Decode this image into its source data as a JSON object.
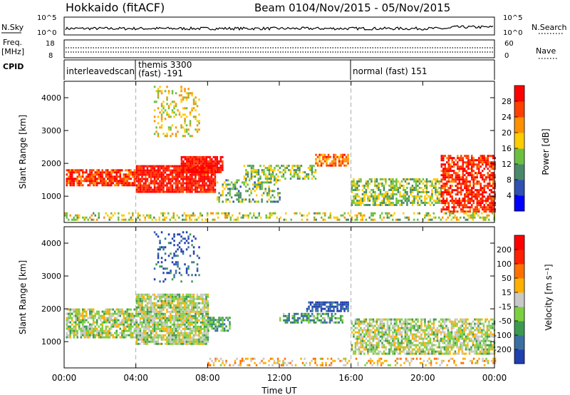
{
  "header": {
    "station": "Hokkaido (fitACF)",
    "beam": "Beam 01",
    "date_range": "04/Nov/2015 - 05/Nov/2015"
  },
  "side_labels": {
    "nsky": "N.Sky",
    "freq_line1": "Freq.",
    "freq_line2": "[MHz]",
    "cpid": "CPID",
    "nsearch": "N.Search",
    "nave": "Nave"
  },
  "strips": {
    "noise_ticks_left": [
      "10^5",
      "10^0"
    ],
    "noise_ticks_right": [
      "10^5",
      "10^0"
    ],
    "freq_ticks_left": [
      "18",
      "8"
    ],
    "freq_ticks_right": [
      "60",
      "0"
    ]
  },
  "cpid_segments": [
    {
      "start_hour": 0,
      "label_line1": "interleavedscan",
      "label_line2": ""
    },
    {
      "start_hour": 4,
      "label_line1": "themis 3300",
      "label_line2": "(fast) -191"
    },
    {
      "start_hour": 16,
      "label_line1": "normal (fast) 151",
      "label_line2": ""
    }
  ],
  "chart_data": [
    {
      "type": "heatmap",
      "panel": "power",
      "ylabel": "Slant Range [km]",
      "ylim": [
        200,
        4500
      ],
      "yticks": [
        1000,
        2000,
        3000,
        4000
      ],
      "xlim_hours": [
        0,
        24
      ],
      "colorbar_label": "Power [dB]",
      "colorbar_ticks": [
        "4",
        "8",
        "12",
        "16",
        "20",
        "24",
        "28"
      ],
      "colorbar_colors": [
        "#0000ff",
        "#3050b4",
        "#4a8a6a",
        "#6cc040",
        "#ffcc00",
        "#ff9000",
        "#ff4000",
        "#ff0000"
      ],
      "bands": [
        {
          "t0": 0.1,
          "t1": 4.0,
          "r0": 1300,
          "r1": 1800,
          "level": 0.85,
          "density": 0.8
        },
        {
          "t0": 4.0,
          "t1": 8.4,
          "r0": 1100,
          "r1": 1900,
          "level": 0.92,
          "density": 0.9
        },
        {
          "t0": 6.5,
          "t1": 8.8,
          "r0": 1700,
          "r1": 2200,
          "level": 0.95,
          "density": 0.9
        },
        {
          "t0": 8.5,
          "t1": 12.0,
          "r0": 800,
          "r1": 1500,
          "level": 0.4,
          "density": 0.4
        },
        {
          "t0": 10.0,
          "t1": 14.0,
          "r0": 1500,
          "r1": 1900,
          "level": 0.45,
          "density": 0.5
        },
        {
          "t0": 14.0,
          "t1": 15.8,
          "r0": 1900,
          "r1": 2250,
          "level": 0.75,
          "density": 0.8
        },
        {
          "t0": 5.0,
          "t1": 7.5,
          "r0": 2800,
          "r1": 4300,
          "level": 0.55,
          "density": 0.25
        },
        {
          "t0": 16.0,
          "t1": 21.0,
          "r0": 700,
          "r1": 1500,
          "level": 0.45,
          "density": 0.6
        },
        {
          "t0": 21.0,
          "t1": 24.0,
          "r0": 500,
          "r1": 2200,
          "level": 0.88,
          "density": 0.7
        },
        {
          "t0": 0.0,
          "t1": 24.0,
          "r0": 250,
          "r1": 500,
          "level": 0.5,
          "density": 0.35
        }
      ]
    },
    {
      "type": "heatmap",
      "panel": "velocity",
      "ylabel": "Slant Range [km]",
      "ylim": [
        200,
        4500
      ],
      "yticks": [
        1000,
        2000,
        3000,
        4000
      ],
      "xlim_hours": [
        0,
        24
      ],
      "xlabel": "Time UT",
      "xtick_labels": [
        "00:00",
        "04:00",
        "08:00",
        "12:00",
        "16:00",
        "20:00",
        "00:00"
      ],
      "colorbar_label": "Velocity [m s⁻¹]",
      "colorbar_ticks": [
        "200",
        "100",
        "50",
        "15",
        "-15",
        "-50",
        "-100",
        "-200"
      ],
      "colorbar_colors": [
        "#2040b0",
        "#3a70a0",
        "#3c9a50",
        "#7cd040",
        "#c8c8c8",
        "#ffb000",
        "#ff7000",
        "#ff2000",
        "#ff0000"
      ],
      "bands": [
        {
          "t0": 0.1,
          "t1": 4.0,
          "r0": 1100,
          "r1": 2000,
          "level": 0.45,
          "density": 0.75
        },
        {
          "t0": 4.0,
          "t1": 8.0,
          "r0": 900,
          "r1": 2400,
          "level": 0.45,
          "density": 0.85
        },
        {
          "t0": 8.0,
          "t1": 9.2,
          "r0": 1300,
          "r1": 1700,
          "level": 0.3,
          "density": 0.6
        },
        {
          "t0": 13.5,
          "t1": 15.8,
          "r0": 1900,
          "r1": 2200,
          "level": 0.05,
          "density": 0.7
        },
        {
          "t0": 12.0,
          "t1": 15.5,
          "r0": 1550,
          "r1": 1850,
          "level": 0.3,
          "density": 0.6
        },
        {
          "t0": 16.0,
          "t1": 24.0,
          "r0": 600,
          "r1": 1700,
          "level": 0.45,
          "density": 0.7
        },
        {
          "t0": 8.0,
          "t1": 24.0,
          "r0": 250,
          "r1": 500,
          "level": 0.6,
          "density": 0.35
        },
        {
          "t0": 5.0,
          "t1": 7.5,
          "r0": 2800,
          "r1": 4300,
          "level": 0.1,
          "density": 0.2
        }
      ]
    }
  ],
  "time_axis": {
    "xlabel": "Time UT",
    "tick_labels": [
      "00:00",
      "04:00",
      "08:00",
      "12:00",
      "16:00",
      "20:00",
      "00:00"
    ]
  }
}
